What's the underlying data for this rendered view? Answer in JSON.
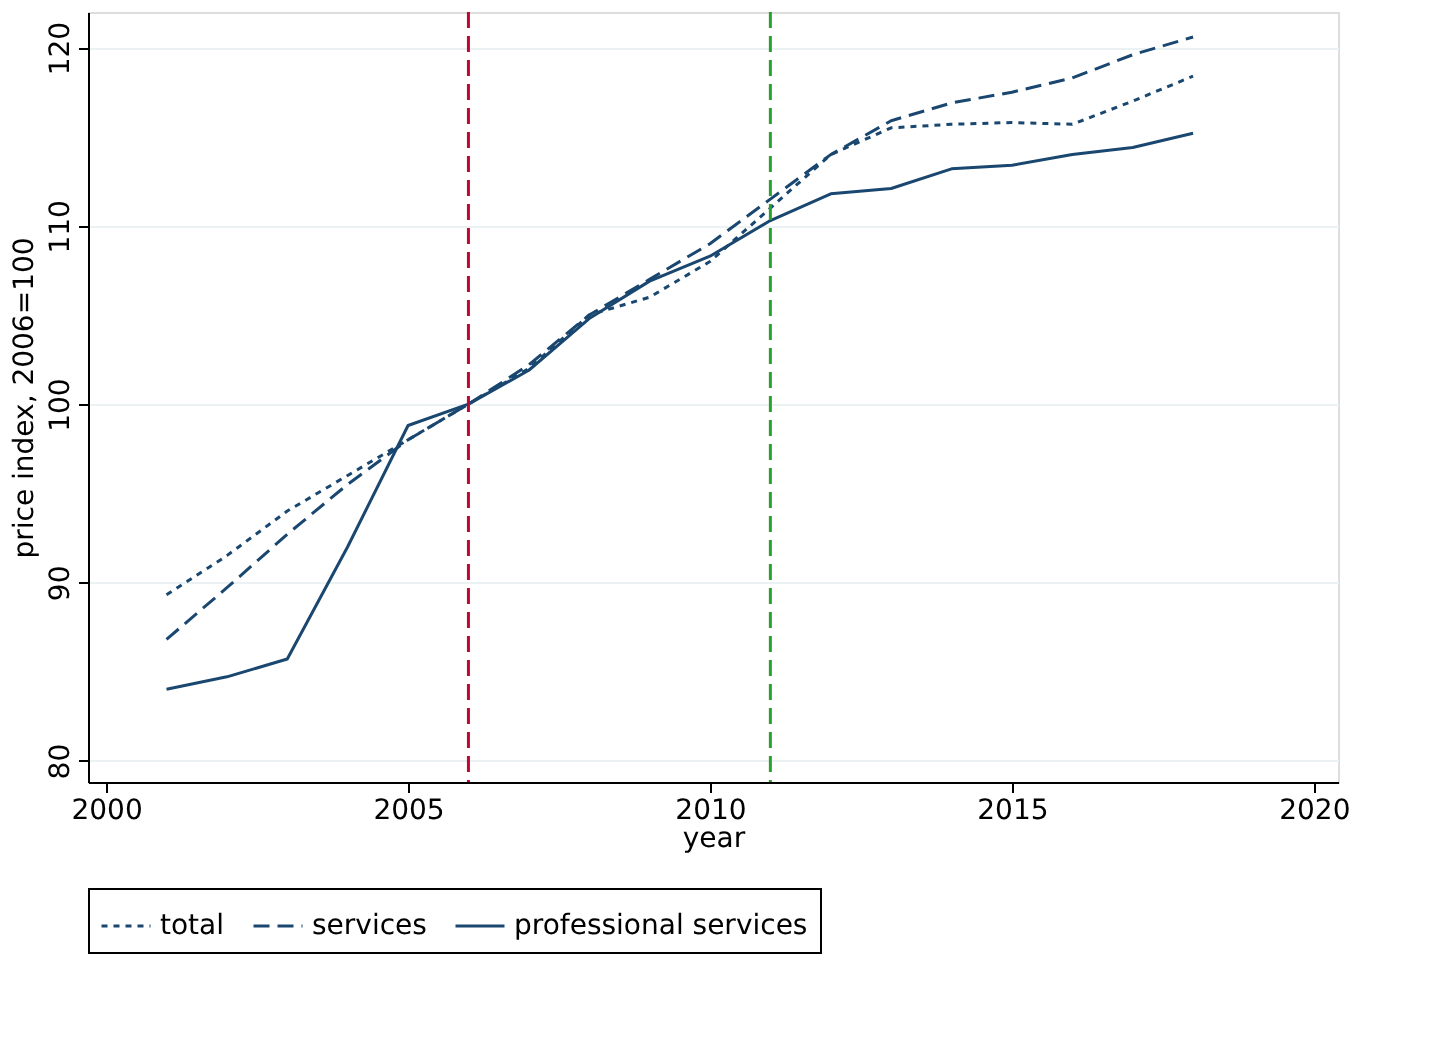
{
  "chart_data": {
    "type": "line",
    "xlabel": "year",
    "ylabel": "price index, 2006=100",
    "x": [
      2001,
      2002,
      2003,
      2004,
      2005,
      2006,
      2007,
      2008,
      2009,
      2010,
      2011,
      2012,
      2013,
      2014,
      2015,
      2016,
      2017,
      2018
    ],
    "series": [
      {
        "name": "total",
        "color": "#1a476f",
        "line_style": "dotted",
        "values": [
          89.3,
          91.5,
          94,
          96,
          98,
          100,
          102,
          105,
          106,
          108,
          111,
          114,
          115.5,
          115.7,
          115.8,
          115.7,
          117,
          118.4
        ]
      },
      {
        "name": "services",
        "color": "#1a476f",
        "line_style": "dashed",
        "values": [
          86.8,
          89.7,
          92.7,
          95.5,
          98,
          100,
          102.2,
          105,
          107,
          109,
          111.5,
          114,
          115.9,
          116.9,
          117.5,
          118.3,
          119.6,
          120.6
        ]
      },
      {
        "name": "professional services",
        "color": "#1a476f",
        "line_style": "solid",
        "values": [
          84,
          84.7,
          85.7,
          92,
          98.8,
          100,
          101.9,
          104.8,
          106.9,
          108.3,
          110.3,
          111.8,
          112.1,
          113.2,
          113.4,
          114,
          114.4,
          115.2
        ]
      }
    ],
    "xlim": [
      1999.7,
      2020.4
    ],
    "xticks": [
      2000,
      2005,
      2010,
      2015,
      2020
    ],
    "ylim": [
      78.8,
      122
    ],
    "yticks": [
      80,
      90,
      100,
      110,
      120
    ],
    "ref_lines": [
      {
        "axis": "x",
        "value": 2006,
        "color": "#c10534",
        "line_style": "dashed"
      },
      {
        "axis": "x",
        "value": 2011,
        "color": "#2ca02c",
        "line_style": "dashed"
      }
    ],
    "grid": "y",
    "legend": "bottom"
  }
}
